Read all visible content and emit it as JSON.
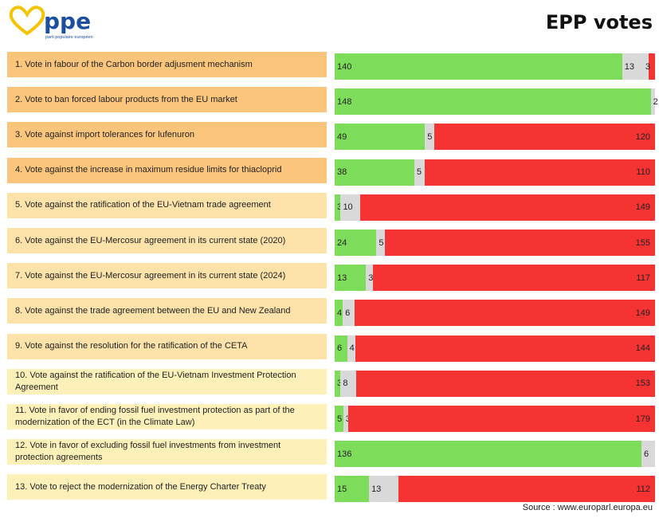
{
  "logo": {
    "text": "ppe",
    "subtext": "parti populaire européen"
  },
  "title": "EPP votes",
  "source": "Source : www.europarl.europa.eu",
  "colors": {
    "yes": "#7edc5b",
    "abstain": "#d9d9d9",
    "no": "#f53333",
    "label_dark": "#fbc57c",
    "label_mid": "#fde2aa",
    "label_light": "#fdf0b8"
  },
  "chart_data": {
    "type": "bar",
    "orientation": "horizontal",
    "stacked": true,
    "title": "EPP votes",
    "series": [
      {
        "color": "#7edc5b",
        "values": [
          140,
          148,
          49,
          38,
          3,
          24,
          13,
          4,
          6,
          3,
          5,
          136,
          15
        ]
      },
      {
        "color": "#d9d9d9",
        "values": [
          13,
          2,
          5,
          5,
          10,
          5,
          3,
          6,
          4,
          8,
          3,
          6,
          13
        ]
      },
      {
        "color": "#f53333",
        "values": [
          3,
          0,
          120,
          110,
          149,
          155,
          117,
          149,
          144,
          153,
          179,
          0,
          112
        ]
      }
    ],
    "categories": [
      "1. Vote in fabour of the Carbon border adjusment mechanism",
      "2. Vote to ban forced labour products from the EU market",
      "3. Vote against import tolerances for lufenuron",
      "4. Vote against the increase in maximum residue limits for thiacloprid",
      "5. Vote against the ratification of the EU-Vietnam trade agreement",
      "6. Vote against the EU-Mercosur agreement in its current state (2020)",
      "7. Vote against the EU-Mercosur agreement in its current state (2024)",
      "8. Vote against the trade agreement between the EU and New Zealand",
      "9. Vote against the resolution for the ratification of the CETA",
      "10.  Vote against the ratification of the EU-Vietnam Investment Protection Agreement",
      "11. Vote in favor of ending fossil fuel investment protection as part of the modernization of the ECT (in the Climate Law)",
      "12. Vote in favor of excluding fossil fuel investments from investment protection agreements",
      "13. Vote to reject the modernization of the Energy Charter Treaty"
    ],
    "label_shades": [
      "dark",
      "dark",
      "dark",
      "dark",
      "mid",
      "mid",
      "mid",
      "mid",
      "mid",
      "light",
      "light",
      "light",
      "light"
    ],
    "legend": "none",
    "grid": false
  }
}
